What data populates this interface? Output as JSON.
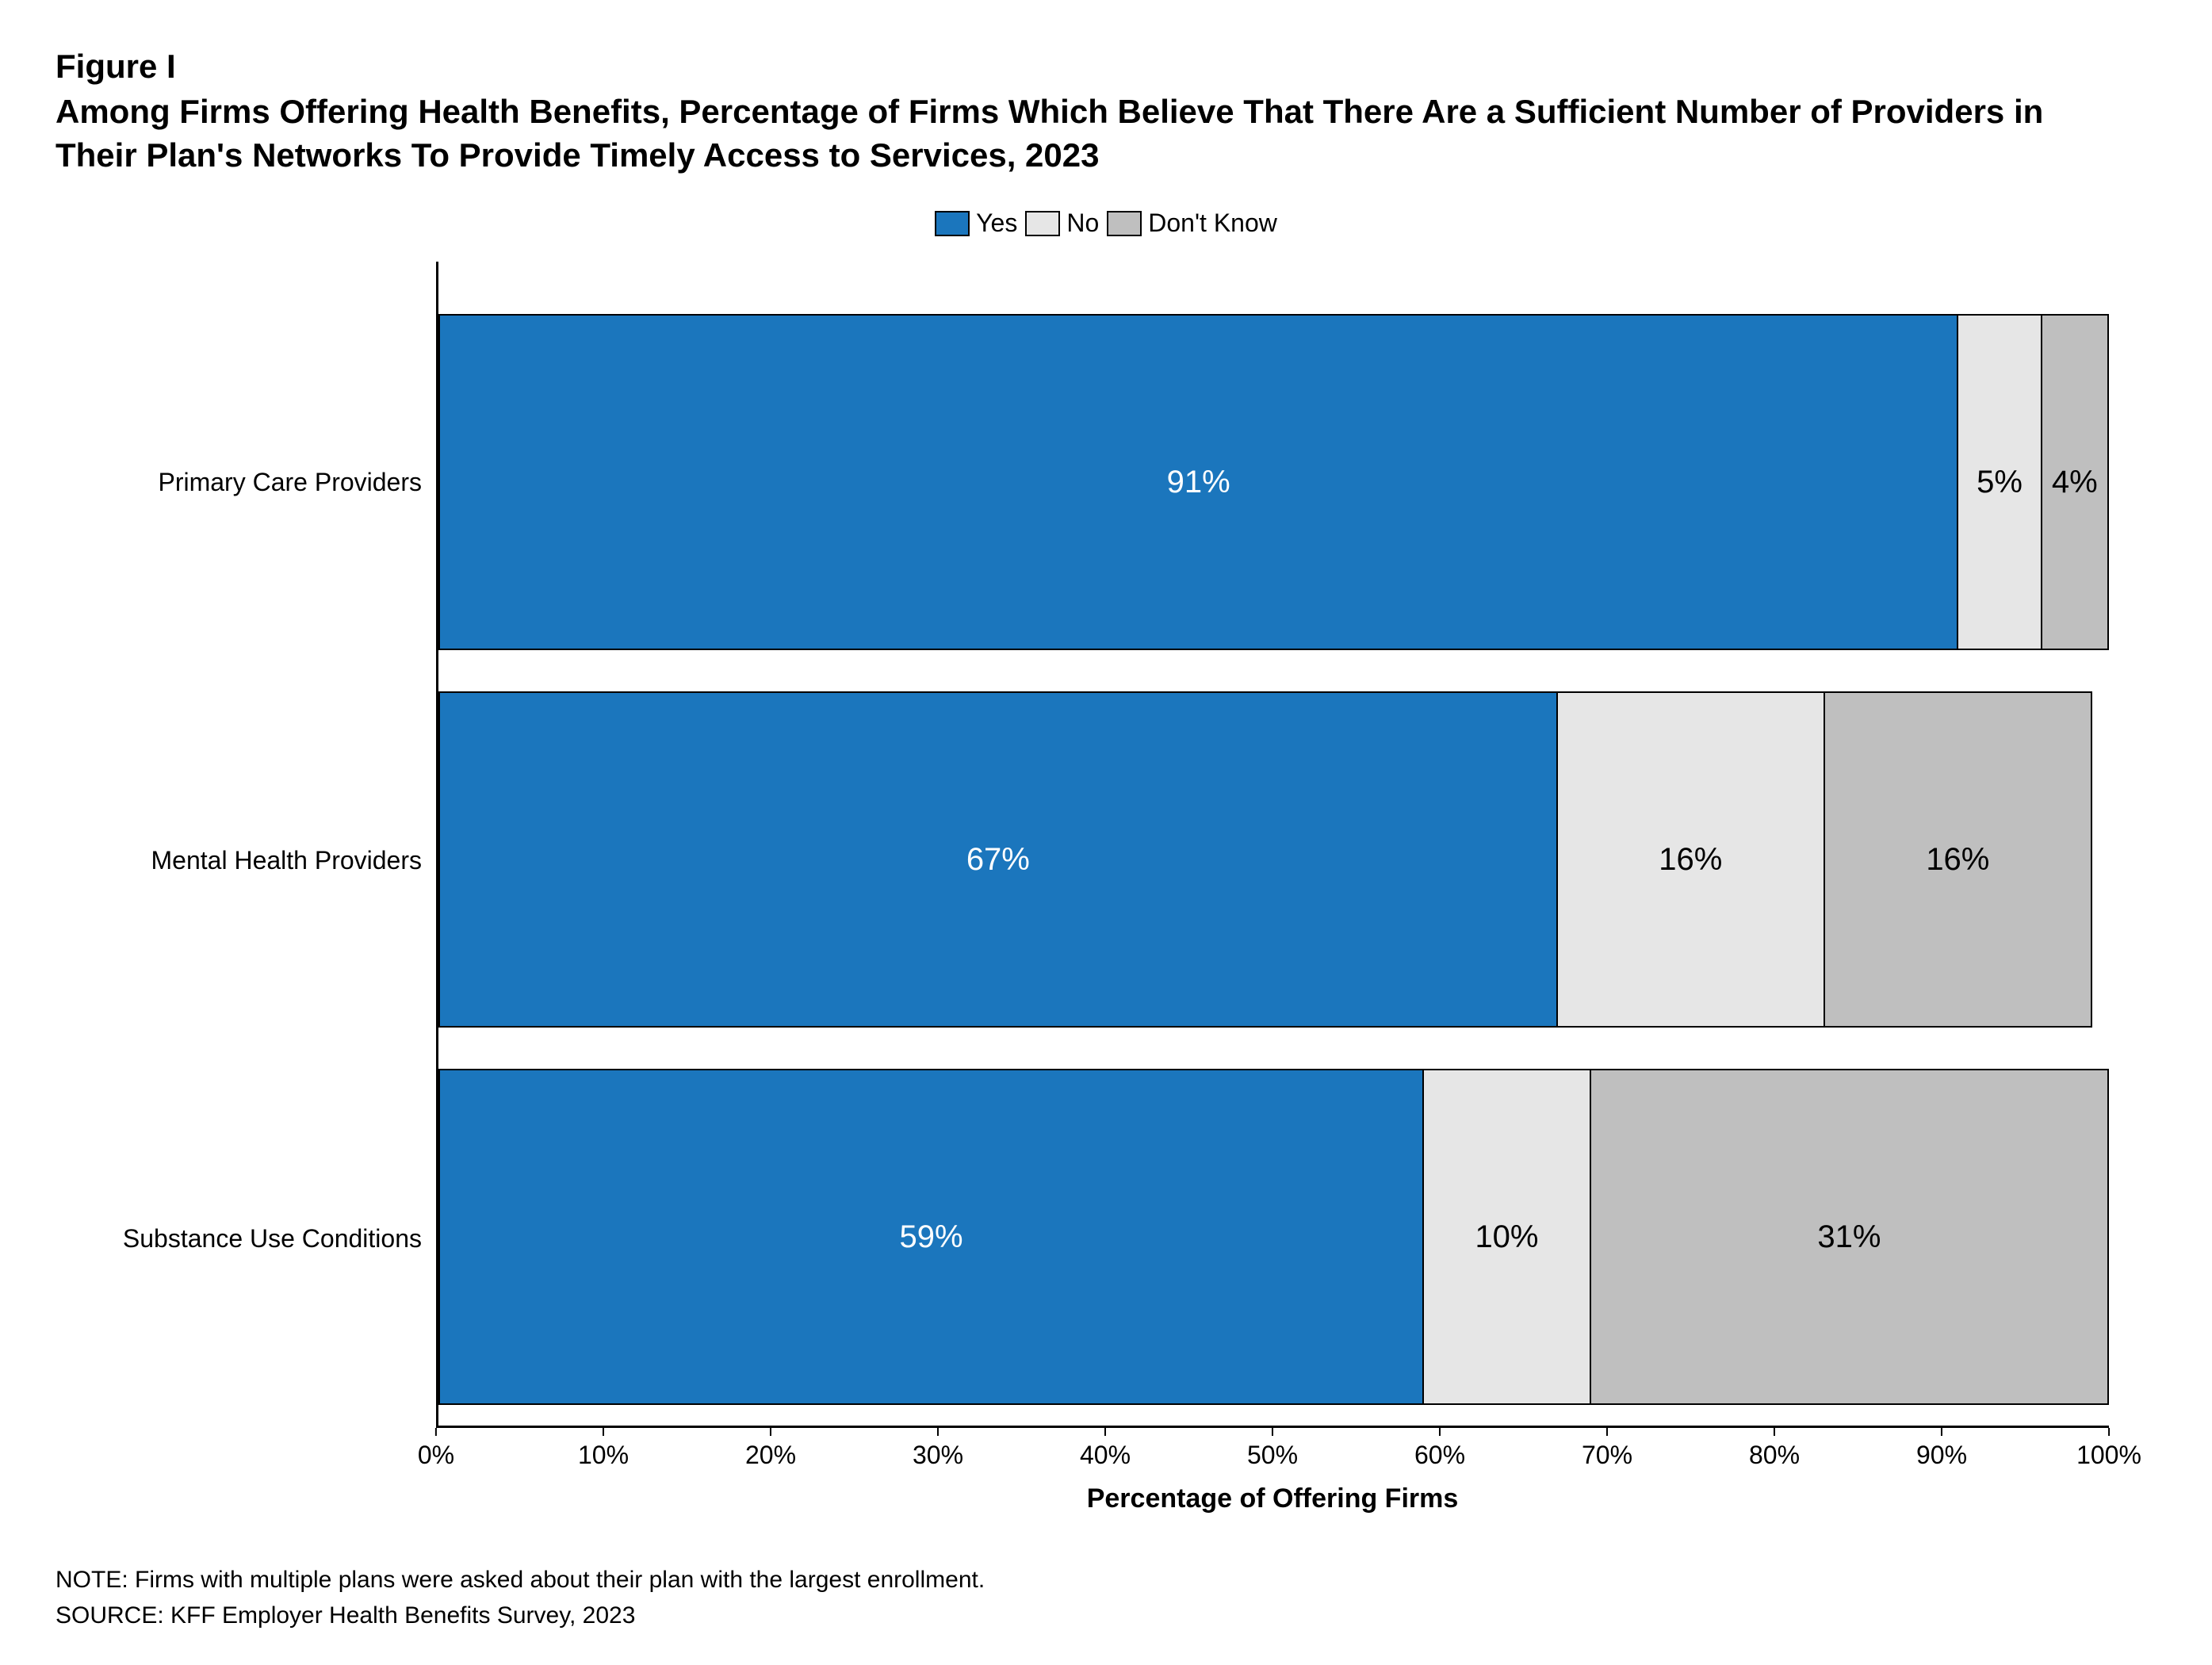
{
  "figure_label": "Figure I",
  "title": "Among Firms Offering Health Benefits, Percentage of Firms Which Believe That There Are a Sufficient Number of Providers in Their Plan's Networks To Provide Timely Access to Services, 2023",
  "chart": {
    "type": "stacked-horizontal-bar",
    "background_color": "#ffffff",
    "text_color": "#000000",
    "border_color": "#000000",
    "title_fontsize": 42,
    "label_fontsize": 32,
    "bar_label_fontsize": 40,
    "series": [
      {
        "key": "yes",
        "label": "Yes",
        "color": "#1b76bd",
        "text_color": "#ffffff"
      },
      {
        "key": "no",
        "label": "No",
        "color": "#e6e6e6",
        "text_color": "#000000"
      },
      {
        "key": "dk",
        "label": "Don't Know",
        "color": "#bfbfbf",
        "text_color": "#000000"
      }
    ],
    "categories": [
      {
        "label": "Primary Care Providers",
        "values": {
          "yes": 91,
          "no": 5,
          "dk": 4
        }
      },
      {
        "label": "Mental Health Providers",
        "values": {
          "yes": 67,
          "no": 16,
          "dk": 16
        }
      },
      {
        "label": "Substance Use Conditions",
        "values": {
          "yes": 59,
          "no": 10,
          "dk": 31
        }
      }
    ],
    "xaxis": {
      "label": "Percentage of Offering Firms",
      "min": 0,
      "max": 100,
      "tick_step": 10,
      "tick_suffix": "%"
    },
    "value_suffix": "%"
  },
  "note": "NOTE: Firms with multiple plans were asked about their plan with the largest enrollment.",
  "source": "SOURCE: KFF Employer Health Benefits Survey, 2023"
}
